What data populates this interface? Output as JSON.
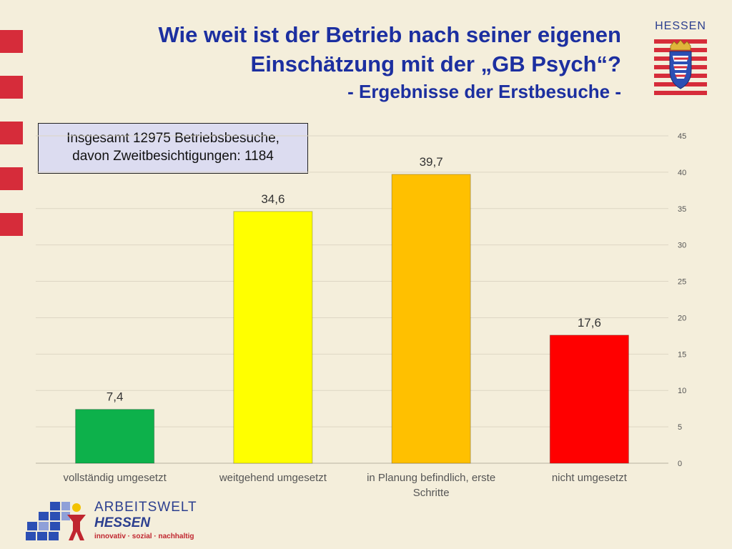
{
  "header": {
    "title_line1": "Wie weit ist der Betrieb nach seiner eigenen",
    "title_line2": "Einschätzung mit der „GB Psych“?",
    "subtitle": "- Ergebnisse der Erstbesuche -"
  },
  "logos": {
    "hessen": "HESSEN",
    "arbeitswelt_line1": "ARBEITSWELT",
    "arbeitswelt_line2": "HESSEN",
    "arbeitswelt_tagline": "innovativ · sozial · nachhaltig"
  },
  "info_box": {
    "line1": "Insgesamt 12975 Betriebsbesuche,",
    "line2": "davon Zweitbesichtigungen: 1184"
  },
  "colors": {
    "title": "#1c2fa0",
    "background": "#f4eedb",
    "stripe_red": "#d62c3a"
  },
  "chart_data": {
    "type": "bar",
    "title": "",
    "xlabel": "",
    "ylabel": "",
    "categories": [
      "vollständig umgesetzt",
      "weitgehend umgesetzt",
      "in Planung befindlich, erste Schritte",
      "nicht umgesetzt"
    ],
    "values": [
      7.4,
      34.6,
      39.7,
      17.6
    ],
    "value_labels": [
      "7,4",
      "34,6",
      "39,7",
      "17,6"
    ],
    "bar_colors": [
      "#0db14b",
      "#ffff00",
      "#ffc000",
      "#ff0000"
    ],
    "ylim": [
      0,
      45
    ],
    "yticks": [
      0,
      5,
      10,
      15,
      20,
      25,
      30,
      35,
      40,
      45
    ],
    "y_axis_position": "right",
    "grid": true,
    "legend": "none"
  }
}
